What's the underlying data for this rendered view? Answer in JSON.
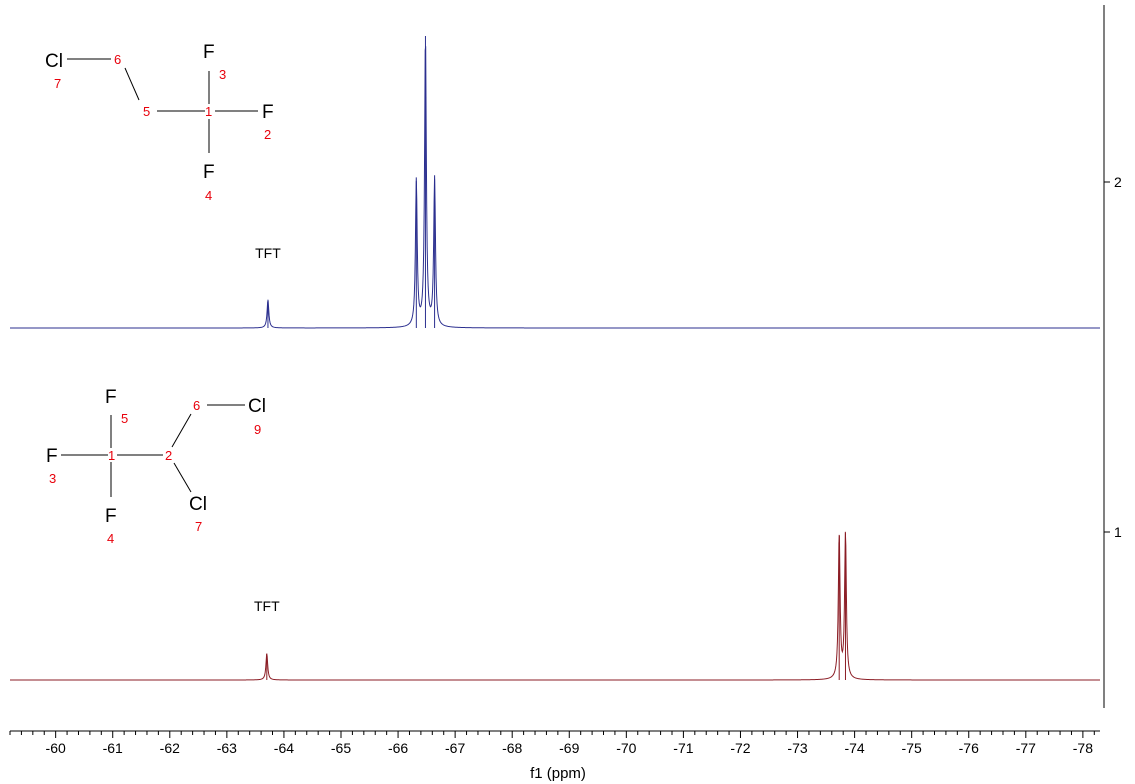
{
  "chart_data": {
    "type": "line",
    "xlabel": "f1 (ppm)",
    "xlim": [
      -59.2,
      -78.3
    ],
    "x_ticks": [
      -60,
      -61,
      -62,
      -63,
      -64,
      -65,
      -66,
      -67,
      -68,
      -69,
      -70,
      -71,
      -72,
      -73,
      -74,
      -75,
      -76,
      -77,
      -78
    ],
    "x_tick_labels": [
      "-60",
      "-61",
      "-62",
      "-63",
      "-64",
      "-65",
      "-66",
      "-67",
      "-68",
      "-69",
      "-70",
      "-71",
      "-72",
      "-73",
      "-74",
      "-75",
      "-76",
      "-77",
      "-78"
    ],
    "right_axis_labels": [
      "2",
      "1"
    ],
    "series": [
      {
        "name": "2",
        "color": "#2b2f8f",
        "peaks": [
          {
            "x": -63.72,
            "height": 0.16
          },
          {
            "x": -66.32,
            "height": 0.83
          },
          {
            "x": -66.48,
            "height": 1.65
          },
          {
            "x": -66.64,
            "height": 0.84
          }
        ],
        "peak_label": {
          "text": "TFT",
          "x": -63.72
        }
      },
      {
        "name": "1",
        "color": "#8b1c24",
        "peaks": [
          {
            "x": -63.7,
            "height": 0.15
          },
          {
            "x": -73.73,
            "height": 0.82
          },
          {
            "x": -73.84,
            "height": 0.83
          }
        ],
        "peak_label": {
          "text": "TFT",
          "x": -63.7
        }
      }
    ],
    "structures": [
      {
        "atoms": [
          {
            "symbol": "Cl",
            "number": "7"
          },
          {
            "symbol": "",
            "number": "6"
          },
          {
            "symbol": "",
            "number": "5"
          },
          {
            "symbol": "",
            "number": "1"
          },
          {
            "symbol": "F",
            "number": "3"
          },
          {
            "symbol": "F",
            "number": "2"
          },
          {
            "symbol": "F",
            "number": "4"
          }
        ]
      },
      {
        "atoms": [
          {
            "symbol": "F",
            "number": "5"
          },
          {
            "symbol": "",
            "number": "6"
          },
          {
            "symbol": "Cl",
            "number": "9"
          },
          {
            "symbol": "F",
            "number": "3"
          },
          {
            "symbol": "",
            "number": "1"
          },
          {
            "symbol": "",
            "number": "2"
          },
          {
            "symbol": "F",
            "number": "4"
          },
          {
            "symbol": "Cl",
            "number": "7"
          }
        ]
      }
    ]
  }
}
